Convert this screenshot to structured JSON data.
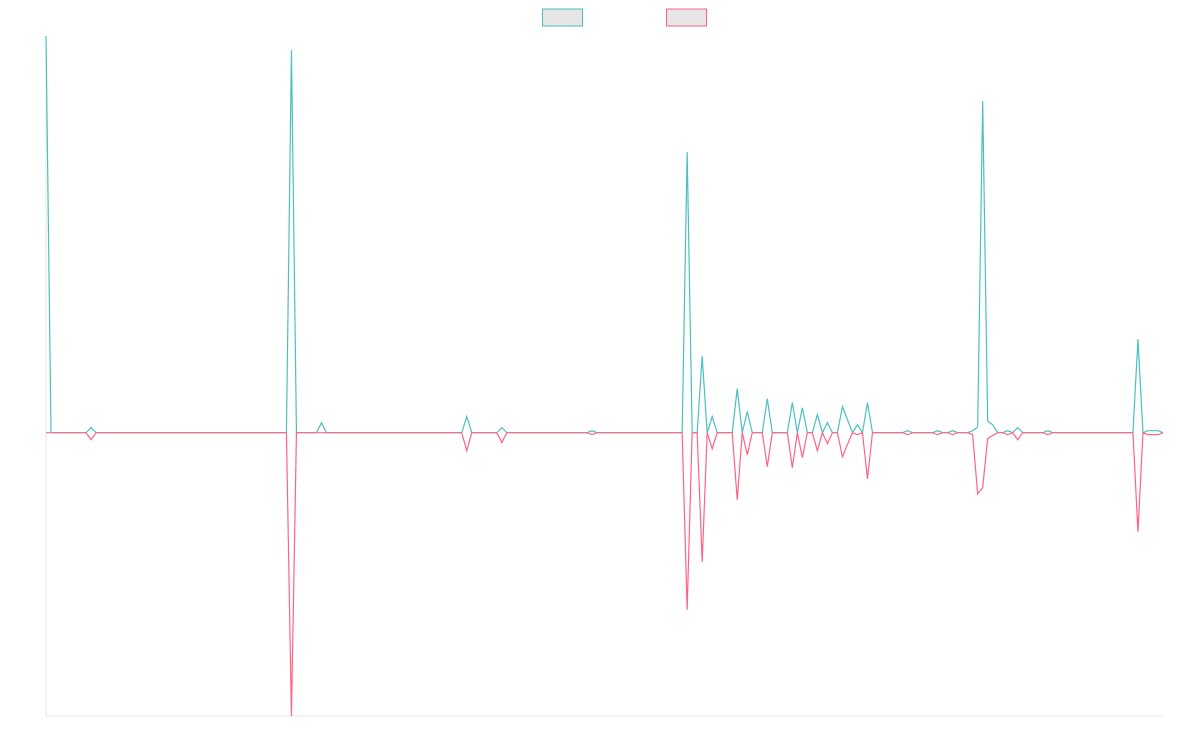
{
  "chart_data": {
    "type": "line",
    "ylim": [
      -100,
      140
    ],
    "series": [
      {
        "color": "#4bc0c0",
        "values": [
          140,
          0,
          0,
          0,
          0,
          0,
          0,
          0,
          0,
          1.8,
          0,
          0,
          0,
          0,
          0,
          0,
          0,
          0,
          0,
          0,
          0,
          0,
          0,
          0,
          0,
          0,
          0,
          0,
          0,
          0,
          0,
          0,
          0,
          0,
          0,
          0,
          0,
          0,
          0,
          0,
          0,
          0,
          0,
          0,
          0,
          0,
          0,
          0,
          0,
          135,
          0,
          0,
          0,
          0,
          0,
          3.5,
          0,
          0,
          0,
          0,
          0,
          0,
          0,
          0,
          0,
          0,
          0,
          0,
          0,
          0,
          0,
          0,
          0,
          0,
          0,
          0,
          0,
          0,
          0,
          0,
          0,
          0,
          0,
          0,
          5.7,
          0,
          0,
          0,
          0,
          0,
          0,
          1.8,
          0,
          0,
          0,
          0,
          0,
          0,
          0,
          0,
          0,
          0,
          0,
          0,
          0,
          0,
          0,
          0,
          0,
          0.7,
          0,
          0,
          0,
          0,
          0,
          0,
          0,
          0,
          0,
          0,
          0,
          0,
          0,
          0,
          0,
          0,
          0,
          0,
          99,
          0,
          0,
          27,
          0,
          5.7,
          0,
          0,
          0,
          0,
          15.5,
          0,
          7.4,
          0,
          0,
          0,
          12,
          0,
          0,
          0,
          0,
          10.6,
          0,
          8.8,
          0,
          0,
          6.4,
          0,
          3.5,
          0,
          0,
          9.2,
          4.6,
          0,
          2.8,
          0,
          10.6,
          0,
          0,
          0,
          0,
          0,
          0,
          0,
          0.7,
          0,
          0,
          0,
          0,
          0,
          0.7,
          0,
          0,
          0.7,
          0,
          0,
          0,
          0.7,
          2,
          117,
          4,
          2.8,
          0,
          0,
          0.7,
          0,
          1.8,
          0,
          0,
          0,
          0,
          0,
          0.7,
          0,
          0,
          0,
          0,
          0,
          0,
          0,
          0,
          0,
          0,
          0,
          0,
          0,
          0,
          0,
          0,
          0,
          33,
          0,
          0.7,
          0.7,
          0.7,
          0
        ]
      },
      {
        "color": "#ff6384",
        "values": [
          0,
          0,
          0,
          0,
          0,
          0,
          0,
          0,
          0,
          -2.5,
          0,
          0,
          0,
          0,
          0,
          0,
          0,
          0,
          0,
          0,
          0,
          0,
          0,
          0,
          0,
          0,
          0,
          0,
          0,
          0,
          0,
          0,
          0,
          0,
          0,
          0,
          0,
          0,
          0,
          0,
          0,
          0,
          0,
          0,
          0,
          0,
          0,
          0,
          0,
          -100,
          0,
          0,
          0,
          0,
          0,
          0,
          0,
          0,
          0,
          0,
          0,
          0,
          0,
          0,
          0,
          0,
          0,
          0,
          0,
          0,
          0,
          0,
          0,
          0,
          0,
          0,
          0,
          0,
          0,
          0,
          0,
          0,
          0,
          0,
          -6.4,
          0,
          0,
          0,
          0,
          0,
          0,
          -3.5,
          0,
          0,
          0,
          0,
          0,
          0,
          0,
          0,
          0,
          0,
          0,
          0,
          0,
          0,
          0,
          0,
          0,
          -0.7,
          0,
          0,
          0,
          0,
          0,
          0,
          0,
          0,
          0,
          0,
          0,
          0,
          0,
          0,
          0,
          0,
          0,
          0,
          -62.5,
          0,
          0,
          -45.6,
          0,
          -5.7,
          0,
          0,
          0,
          0,
          -23.7,
          0,
          -7.8,
          0,
          0,
          0,
          -12,
          0,
          0,
          0,
          0,
          -12.4,
          0,
          -8.8,
          0,
          0,
          -6.4,
          0,
          -3.9,
          0,
          0,
          -8.5,
          -4.2,
          0,
          -0.7,
          0,
          -16.3,
          0,
          0,
          0,
          0,
          0,
          0,
          0,
          -0.7,
          0,
          0,
          0,
          0,
          0,
          -0.7,
          0,
          0,
          -0.7,
          0,
          0,
          0,
          -0.7,
          -21.6,
          -19.4,
          -2,
          -1,
          0,
          0,
          -0.7,
          0,
          -2.5,
          0,
          0,
          0,
          0,
          0,
          -0.7,
          0,
          0,
          0,
          0,
          0,
          0,
          0,
          0,
          0,
          0,
          0,
          0,
          0,
          0,
          0,
          0,
          0,
          -35,
          0,
          -0.7,
          -0.7,
          -0.7,
          0
        ]
      }
    ],
    "legend": "top"
  }
}
